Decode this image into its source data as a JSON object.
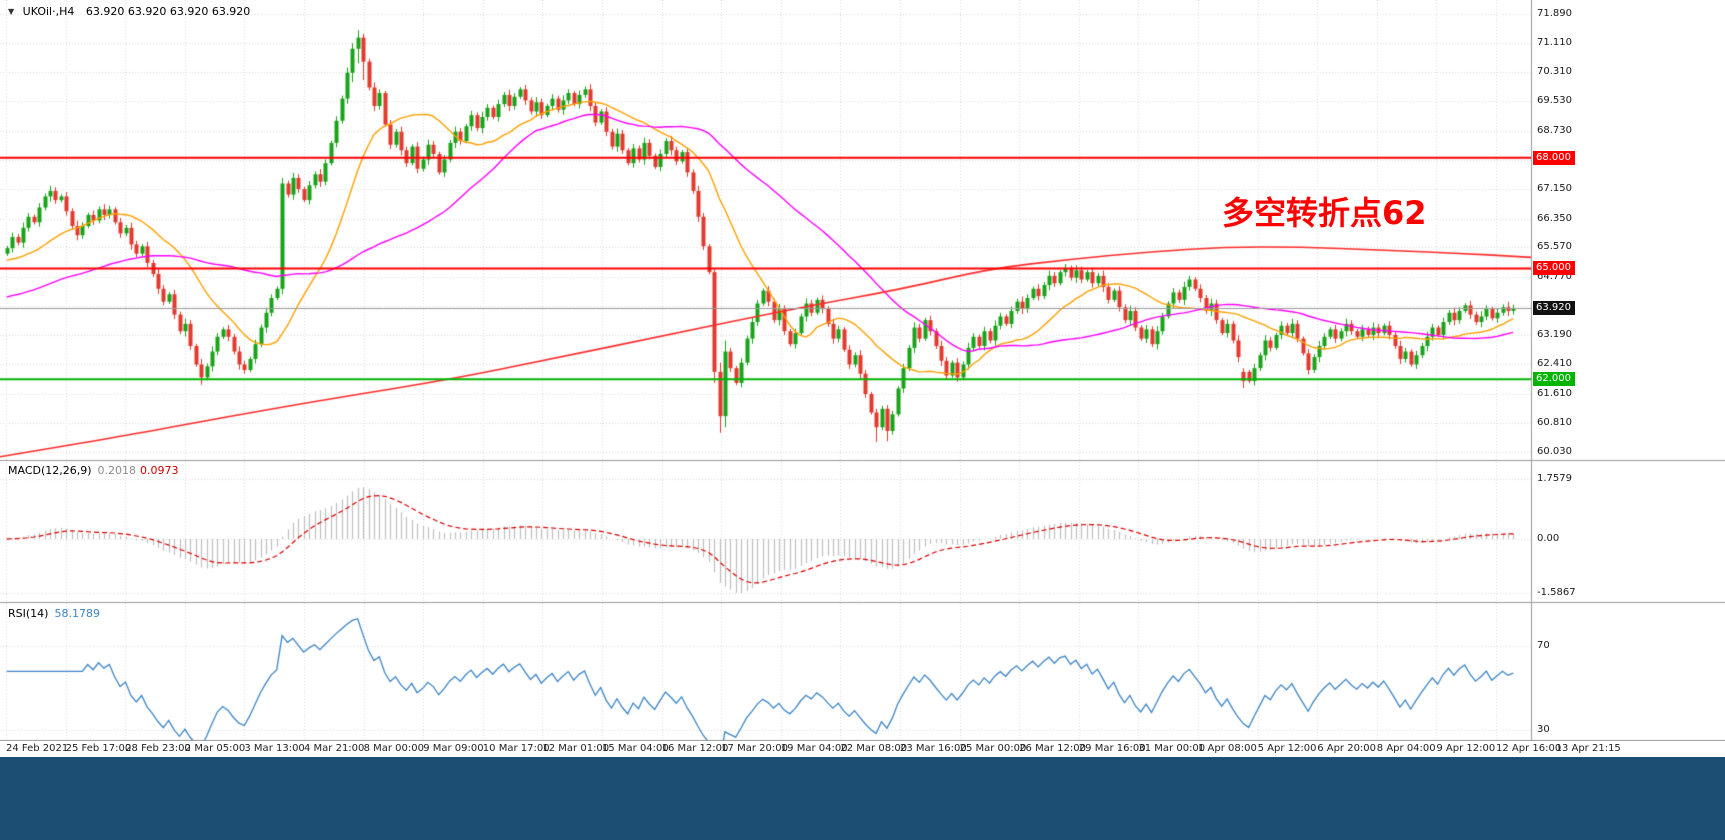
{
  "header": {
    "dropdown_icon": "▼",
    "symbol_info": "UKOil·,H4",
    "ohlc": "63.920 63.920 63.920 63.920"
  },
  "annotation": {
    "text": "多空转折点62",
    "color": "#ff0000"
  },
  "main_chart": {
    "y_ticks": {
      "labels": [
        "71.890",
        "71.110",
        "70.310",
        "69.530",
        "68.730",
        "67.950",
        "67.150",
        "66.350",
        "65.570",
        "64.770",
        "63.990",
        "63.190",
        "62.410",
        "61.610",
        "60.810",
        "60.030"
      ],
      "values": [
        71.89,
        71.11,
        70.31,
        69.53,
        68.73,
        67.95,
        67.15,
        66.35,
        65.57,
        64.77,
        63.99,
        63.19,
        62.41,
        61.61,
        60.81,
        60.03
      ]
    },
    "price_lines": [
      {
        "value": 68.0,
        "label": "68.000",
        "color": "#ff0000"
      },
      {
        "value": 65.0,
        "label": "65.000",
        "color": "#ff0000"
      },
      {
        "value": 62.0,
        "label": "62.000",
        "color": "#00b400"
      }
    ],
    "current_price": {
      "value": 63.92,
      "label": "63.920",
      "bg": "#111111",
      "line_color": "#9a9a9a"
    }
  },
  "macd_panel": {
    "name": "MACD(12,26,9)",
    "value_macd": "0.2018",
    "value_signal": "0.0973",
    "axis": {
      "labels": [
        "1.7579",
        "0.00",
        "-1.5867"
      ],
      "values": [
        1.7579,
        0,
        -1.5867
      ]
    }
  },
  "rsi_panel": {
    "name": "RSI(14)",
    "value": "58.1789",
    "axis": {
      "labels": [
        "70",
        "30"
      ],
      "values": [
        70,
        30
      ]
    }
  },
  "chart_data": {
    "type": "candlestick",
    "symbol": "UKOil",
    "timeframe": "H4",
    "y_range": [
      60.03,
      71.89
    ],
    "x_labels": [
      "24 Feb 2021",
      "25 Feb 17:00",
      "28 Feb 23:00",
      "2 Mar 05:00",
      "3 Mar 13:00",
      "4 Mar 21:00",
      "8 Mar 00:00",
      "9 Mar 09:00",
      "10 Mar 17:00",
      "12 Mar 01:00",
      "15 Mar 04:00",
      "16 Mar 12:00",
      "17 Mar 20:00",
      "19 Mar 04:00",
      "22 Mar 08:00",
      "23 Mar 16:00",
      "25 Mar 00:00",
      "26 Mar 12:00",
      "29 Mar 16:00",
      "31 Mar 00:00",
      "1 Apr 08:00",
      "5 Apr 12:00",
      "6 Apr 20:00",
      "8 Apr 04:00",
      "9 Apr 12:00",
      "12 Apr 16:00",
      "13 Apr 21:15"
    ],
    "closes": [
      65.55,
      65.85,
      65.7,
      66.1,
      66.4,
      66.25,
      66.65,
      66.95,
      67.1,
      66.85,
      66.95,
      66.55,
      66.15,
      65.9,
      66.15,
      66.45,
      66.3,
      66.6,
      66.45,
      66.6,
      66.25,
      65.95,
      66.1,
      65.65,
      65.4,
      65.6,
      65.15,
      64.85,
      64.45,
      64.1,
      64.3,
      63.75,
      63.3,
      63.5,
      62.9,
      62.4,
      62.05,
      62.35,
      62.75,
      63.15,
      63.35,
      63.15,
      62.75,
      62.4,
      62.25,
      62.55,
      62.95,
      63.4,
      63.8,
      64.2,
      64.45,
      67.3,
      67.0,
      67.45,
      67.15,
      66.85,
      67.25,
      67.55,
      67.35,
      67.85,
      68.4,
      69.0,
      69.6,
      70.3,
      70.95,
      71.25,
      70.6,
      69.9,
      69.4,
      69.75,
      68.9,
      68.35,
      68.7,
      68.2,
      67.85,
      68.3,
      67.7,
      67.95,
      68.35,
      68.1,
      67.6,
      67.95,
      68.4,
      68.7,
      68.45,
      68.85,
      69.15,
      68.8,
      69.1,
      69.35,
      69.1,
      69.45,
      69.7,
      69.4,
      69.65,
      69.85,
      69.55,
      69.25,
      69.5,
      69.15,
      69.4,
      69.6,
      69.3,
      69.55,
      69.75,
      69.45,
      69.7,
      69.85,
      69.4,
      68.95,
      69.25,
      68.7,
      68.3,
      68.65,
      68.2,
      67.85,
      68.25,
      67.95,
      68.4,
      68.05,
      67.75,
      68.1,
      68.45,
      68.2,
      67.9,
      68.15,
      67.6,
      67.1,
      66.4,
      65.6,
      64.9,
      62.2,
      61.0,
      62.75,
      62.3,
      61.9,
      62.45,
      63.1,
      63.55,
      64.05,
      64.4,
      64.1,
      63.6,
      63.9,
      63.3,
      62.95,
      63.25,
      63.7,
      64.05,
      63.8,
      64.15,
      63.9,
      63.5,
      63.1,
      63.35,
      62.8,
      62.4,
      62.65,
      62.15,
      61.6,
      61.1,
      60.7,
      61.2,
      60.6,
      61.05,
      61.75,
      62.3,
      62.85,
      63.4,
      63.1,
      63.6,
      63.3,
      62.9,
      62.5,
      62.1,
      62.45,
      62.05,
      62.4,
      62.85,
      63.15,
      62.9,
      63.3,
      63.05,
      63.45,
      63.7,
      63.5,
      63.85,
      64.1,
      63.9,
      64.2,
      64.45,
      64.25,
      64.55,
      64.8,
      64.6,
      64.9,
      65.0,
      64.75,
      64.95,
      64.7,
      64.9,
      64.6,
      64.8,
      64.5,
      64.15,
      64.4,
      63.95,
      63.6,
      63.85,
      63.4,
      63.1,
      63.35,
      62.95,
      63.3,
      63.7,
      64.05,
      64.35,
      64.15,
      64.5,
      64.7,
      64.45,
      64.2,
      63.85,
      64.05,
      63.6,
      63.25,
      63.5,
      63.05,
      62.6,
      62.2,
      61.95,
      62.3,
      62.65,
      63.05,
      62.85,
      63.2,
      63.45,
      63.25,
      63.5,
      63.1,
      62.7,
      62.25,
      62.6,
      62.9,
      63.15,
      63.35,
      63.1,
      63.3,
      63.5,
      63.3,
      63.15,
      63.35,
      63.2,
      63.4,
      63.25,
      63.45,
      63.2,
      62.9,
      62.55,
      62.75,
      62.4,
      62.65,
      62.9,
      63.15,
      63.4,
      63.2,
      63.55,
      63.8,
      63.6,
      63.85,
      64.0,
      63.75,
      63.55,
      63.7,
      63.9,
      63.65,
      63.8,
      63.95,
      63.85,
      63.92
    ],
    "candle_overrides": {
      "36": [
        62.4,
        62.55,
        61.85,
        62.05
      ],
      "51": [
        64.45,
        67.45,
        64.3,
        67.3
      ],
      "64": [
        70.3,
        71.1,
        70.05,
        70.95
      ],
      "65": [
        70.95,
        71.45,
        70.55,
        71.25
      ],
      "66": [
        71.25,
        71.35,
        70.1,
        70.6
      ],
      "131": [
        64.9,
        65.0,
        61.9,
        62.2
      ],
      "132": [
        62.2,
        62.45,
        60.55,
        61.0
      ],
      "133": [
        61.0,
        63.05,
        60.7,
        62.75
      ],
      "161": [
        61.1,
        61.2,
        60.3,
        60.7
      ],
      "163": [
        61.2,
        61.3,
        60.32,
        60.6
      ],
      "229": [
        62.2,
        62.3,
        61.76,
        61.95
      ]
    },
    "moving_averages": {
      "fast": {
        "period": 18,
        "pad": 65.2,
        "color": "#ffa000"
      },
      "mid": {
        "period": 48,
        "pad": 64.2,
        "color": "#ff00ff"
      },
      "slow": {
        "color": "#ff2b2b",
        "anchors": [
          [
            0,
            59.9
          ],
          [
            0.08,
            60.45
          ],
          [
            0.15,
            61.0
          ],
          [
            0.22,
            61.5
          ],
          [
            0.295,
            62.0
          ],
          [
            0.36,
            62.55
          ],
          [
            0.43,
            63.15
          ],
          [
            0.52,
            63.92
          ],
          [
            0.59,
            64.45
          ],
          [
            0.647,
            65.0
          ],
          [
            0.7,
            65.25
          ],
          [
            0.75,
            65.45
          ],
          [
            0.8,
            65.58
          ],
          [
            0.85,
            65.58
          ],
          [
            0.9,
            65.5
          ],
          [
            0.95,
            65.42
          ],
          [
            1,
            65.3
          ]
        ]
      }
    },
    "macd": {
      "fast": 12,
      "slow": 26,
      "signal": 9,
      "last": 0.2018,
      "last_signal": 0.0973,
      "axis_max": 1.7579,
      "axis_min": -1.5867,
      "hist_color": "#bfbfbf",
      "signal_color": "#dd0000"
    },
    "rsi": {
      "period": 14,
      "last": 58.1789,
      "levels": [
        70,
        30
      ],
      "color": "#3d85c6"
    },
    "colors": {
      "up": "#1aa31a",
      "down": "#e23a2e",
      "grid": "#dcdcdc",
      "separator": "#9a9a9a"
    }
  }
}
